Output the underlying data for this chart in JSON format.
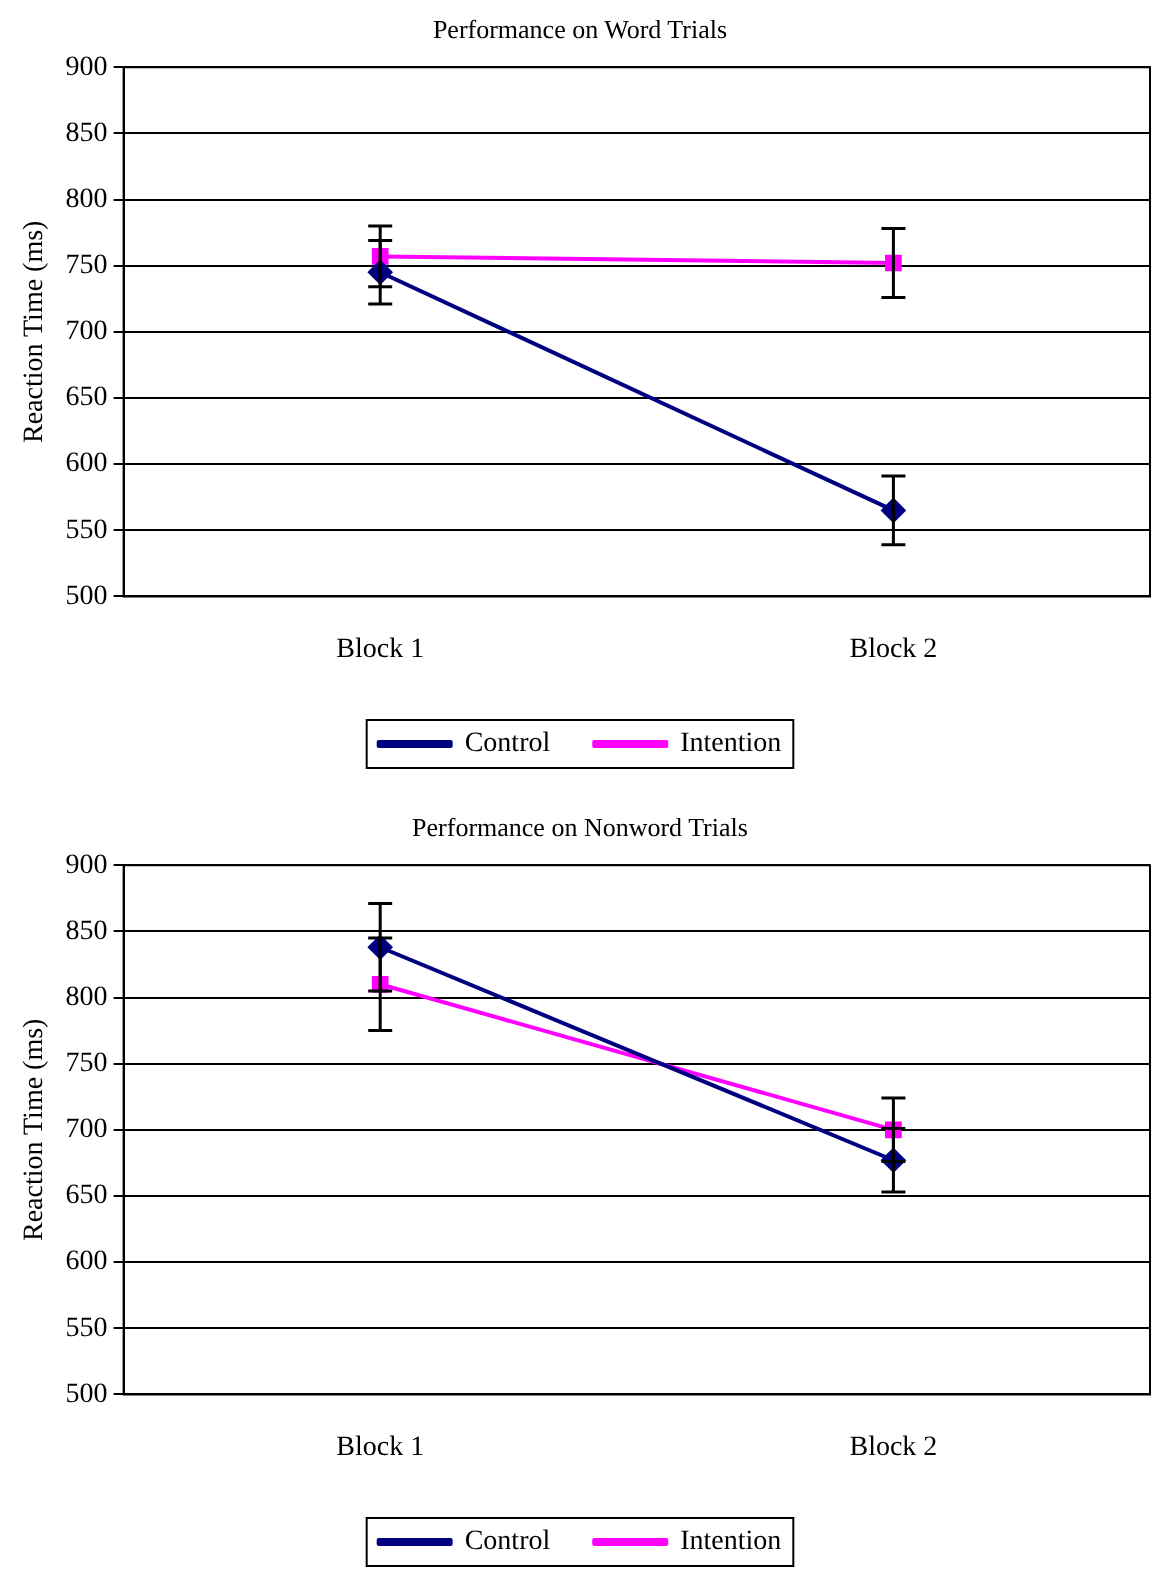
{
  "chart_data": [
    {
      "type": "line",
      "title": "Performance on Word Trials",
      "ylabel": "Reaction Time (ms)",
      "categories": [
        "Block 1",
        "Block 2"
      ],
      "ylim": [
        500,
        900
      ],
      "yticks": [
        500,
        550,
        600,
        650,
        700,
        750,
        800,
        850,
        900
      ],
      "grid": "y",
      "legend": "bottom",
      "line_style": "solid",
      "series": [
        {
          "name": "Control",
          "color": "#000080",
          "marker": "diamond",
          "values": [
            745,
            565
          ],
          "errors": [
            24,
            26
          ]
        },
        {
          "name": "Intention",
          "color": "#ff00ff",
          "marker": "square",
          "values": [
            757,
            752
          ],
          "errors": [
            23,
            26
          ]
        }
      ]
    },
    {
      "type": "line",
      "title": "Performance on Nonword Trials",
      "ylabel": "Reaction Time (ms)",
      "categories": [
        "Block 1",
        "Block 2"
      ],
      "ylim": [
        500,
        900
      ],
      "yticks": [
        500,
        550,
        600,
        650,
        700,
        750,
        800,
        850,
        900
      ],
      "grid": "y",
      "legend": "bottom",
      "line_style": "solid",
      "series": [
        {
          "name": "Control",
          "color": "#000080",
          "marker": "diamond",
          "values": [
            838,
            677
          ],
          "errors": [
            33,
            24
          ]
        },
        {
          "name": "Intention",
          "color": "#ff00ff",
          "marker": "square",
          "values": [
            810,
            700
          ],
          "errors": [
            35,
            24
          ]
        }
      ]
    }
  ]
}
